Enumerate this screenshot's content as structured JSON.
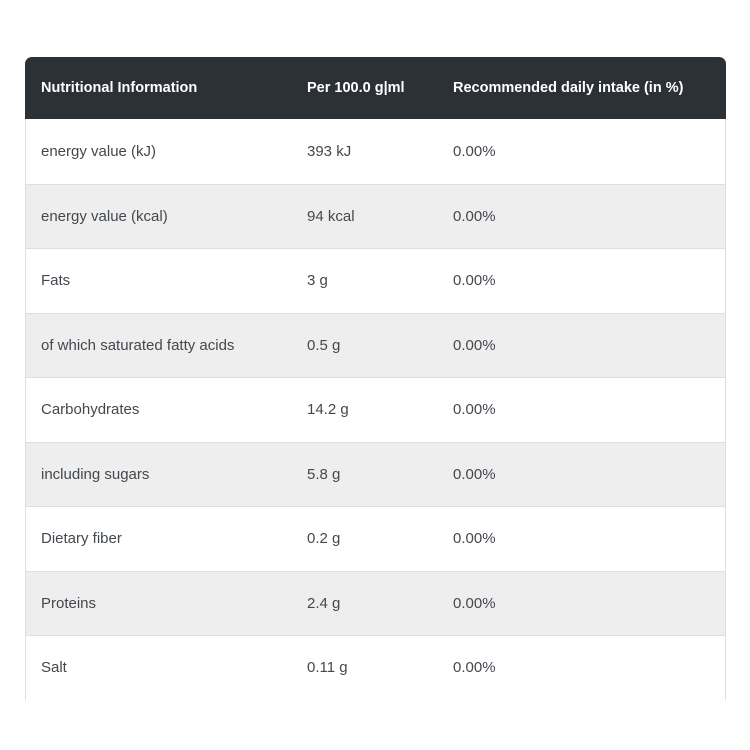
{
  "table": {
    "columns": [
      {
        "label": "Nutritional Information"
      },
      {
        "label": "Per 100.0 g|ml"
      },
      {
        "label": "Recommended daily intake (in %)"
      }
    ],
    "rows": [
      {
        "nutrient": "energy value (kJ)",
        "per_100": "393 kJ",
        "rdi": "0.00%"
      },
      {
        "nutrient": "energy value (kcal)",
        "per_100": "94 kcal",
        "rdi": "0.00%"
      },
      {
        "nutrient": "Fats",
        "per_100": "3 g",
        "rdi": "0.00%"
      },
      {
        "nutrient": "of which saturated fatty acids",
        "per_100": "0.5 g",
        "rdi": "0.00%"
      },
      {
        "nutrient": "Carbohydrates",
        "per_100": "14.2 g",
        "rdi": "0.00%"
      },
      {
        "nutrient": "including sugars",
        "per_100": "5.8 g",
        "rdi": "0.00%"
      },
      {
        "nutrient": "Dietary fiber",
        "per_100": "0.2 g",
        "rdi": "0.00%"
      },
      {
        "nutrient": "Proteins",
        "per_100": "2.4 g",
        "rdi": "0.00%"
      },
      {
        "nutrient": "Salt",
        "per_100": "0.11 g",
        "rdi": "0.00%"
      }
    ],
    "colors": {
      "header_bg": "#2b3136",
      "header_text": "#ffffff",
      "row_bg": "#ffffff",
      "row_alt_bg": "#eeeeee",
      "border": "#d9e0e5",
      "body_text": "#42484e"
    }
  }
}
